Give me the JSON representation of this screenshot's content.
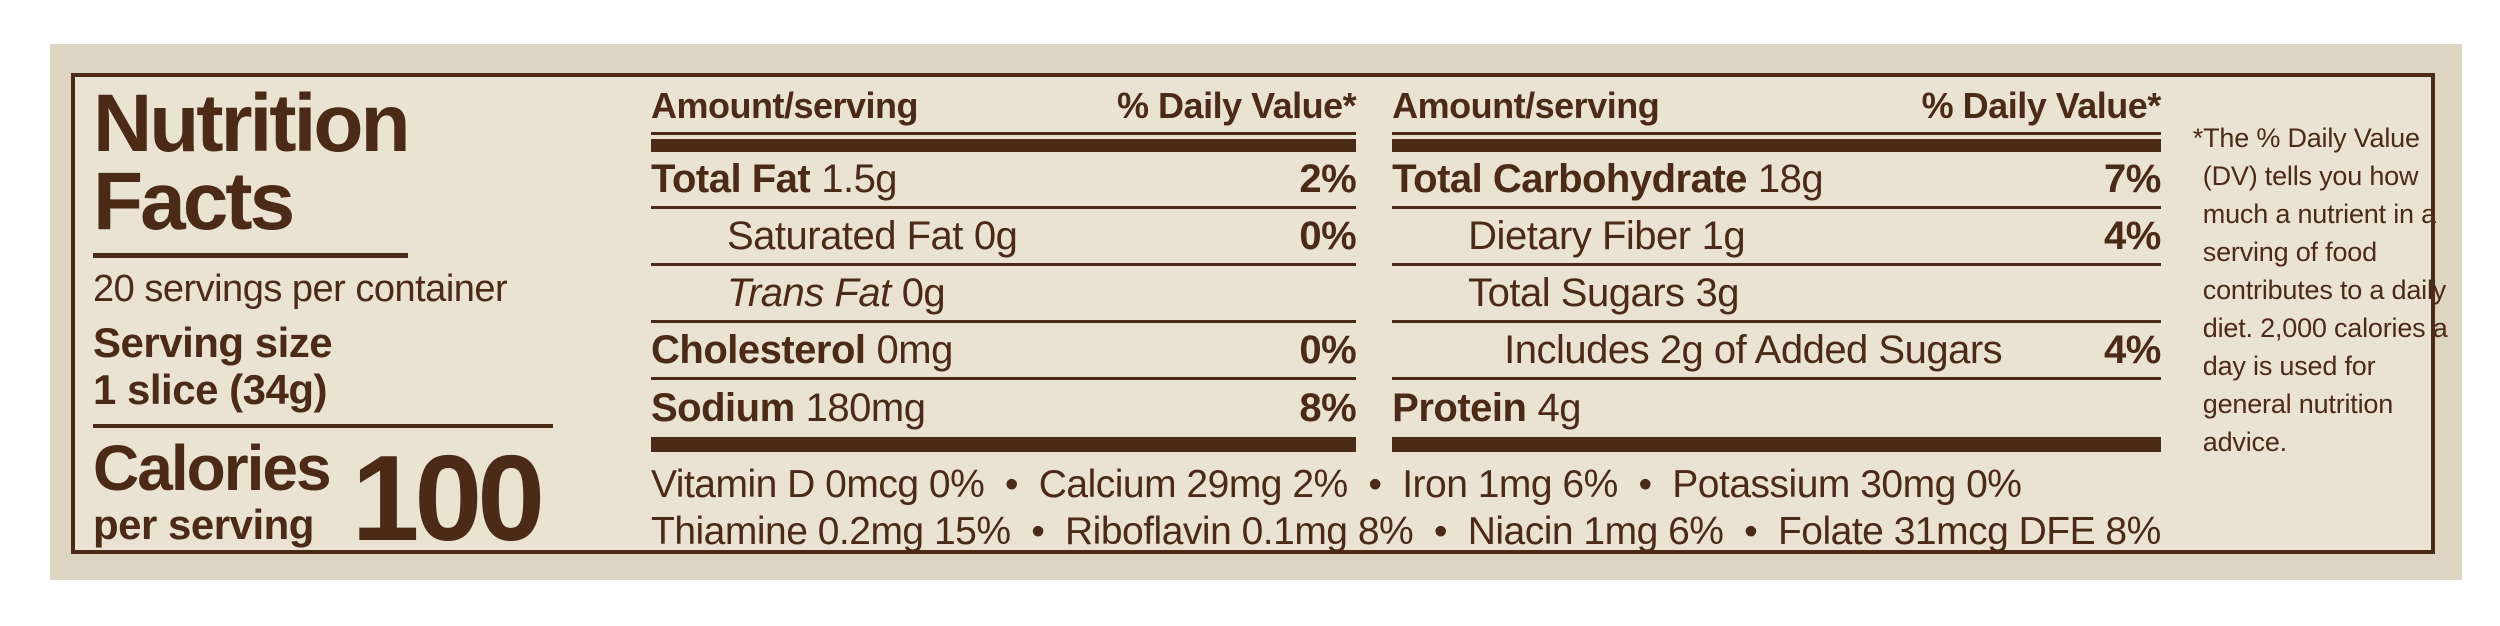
{
  "colors": {
    "ink": "#4b2a17",
    "paper": "#ebe3d1",
    "backdrop": "#ddd4c2",
    "page_background": "#ffffff"
  },
  "label": {
    "title_line1": "Nutrition",
    "title_line2": "Facts",
    "servings_per_container": "20 servings per container",
    "serving_size_label": "Serving size",
    "serving_size_value": "1 slice (34g)",
    "calories_label_line1": "Calories",
    "calories_label_line2": "per serving",
    "calories_value": "100"
  },
  "columns": [
    {
      "header_amount": "Amount/serving",
      "header_dv": "% Daily Value*",
      "rows": [
        {
          "name": "Total Fat",
          "amount": "1.5g",
          "dv": "2%"
        },
        {
          "name": "Saturated Fat",
          "amount": "0g",
          "dv": "0%"
        },
        {
          "name": "Trans Fat",
          "amount": "0g",
          "dv": ""
        },
        {
          "name": "Cholesterol",
          "amount": "0mg",
          "dv": "0%"
        },
        {
          "name": "Sodium",
          "amount": "180mg",
          "dv": "8%"
        }
      ]
    },
    {
      "header_amount": "Amount/serving",
      "header_dv": "% Daily Value*",
      "rows": [
        {
          "name": "Total Carbohydrate",
          "amount": "18g",
          "dv": "7%"
        },
        {
          "name": "Dietary Fiber",
          "amount": "1g",
          "dv": "4%"
        },
        {
          "name": "Total Sugars",
          "amount": "3g",
          "dv": ""
        },
        {
          "name": "Includes 2g of Added Sugars",
          "amount": "",
          "dv": "4%"
        },
        {
          "name": "Protein",
          "amount": "4g",
          "dv": ""
        }
      ]
    }
  ],
  "micronutrients": {
    "separator": "•",
    "line1": [
      "Vitamin D 0mcg 0%",
      "Calcium 29mg 2%",
      "Iron 1mg 6%",
      "Potassium 30mg 0%"
    ],
    "line2": [
      "Thiamine 0.2mg 15%",
      "Riboflavin 0.1mg 8%",
      "Niacin 1mg 6%",
      "Folate 31mcg DFE 8%"
    ]
  },
  "footnote": {
    "text": "*The % Daily Value (DV) tells you how much a nutrient in a serving of food contributes to a daily diet. 2,000 calories a day is used for general nutrition advice."
  }
}
